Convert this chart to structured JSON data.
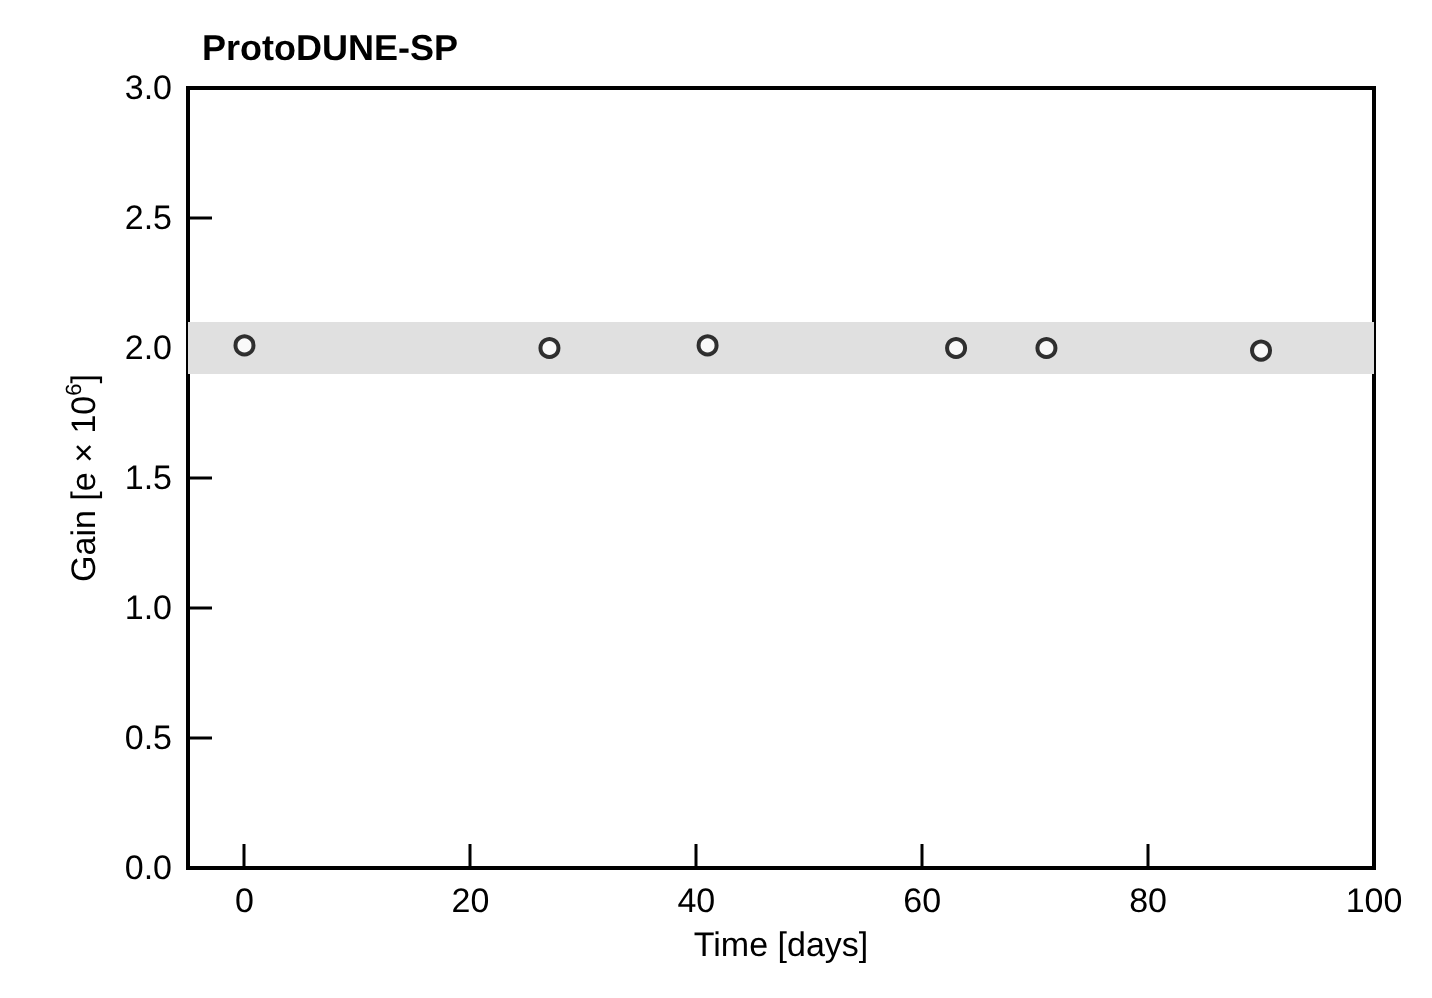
{
  "chart_data": {
    "type": "scatter",
    "title": "ProtoDUNE-SP",
    "xlabel": "Time [days]",
    "ylabel": "Gain [e × 10$^{6}$]",
    "x": [
      0,
      27,
      41,
      63,
      71,
      90
    ],
    "series": [
      {
        "color": "#000000",
        "values": [
          2.01,
          2.0,
          2.01,
          2.0,
          2.0,
          1.99
        ]
      }
    ],
    "marker": "circle",
    "xlim": [
      -5,
      100
    ],
    "xticks": [
      0,
      20,
      40,
      60,
      80,
      100
    ],
    "ylim": [
      0,
      3
    ],
    "yticks": [
      {
        "value": 0,
        "label": "0.0"
      },
      0.5,
      {
        "value": 1,
        "label": "1.0"
      },
      1.5,
      {
        "value": 2,
        "label": "2.0"
      },
      2.5,
      {
        "value": 3,
        "label": "3.0"
      }
    ],
    "bands": [
      {
        "axis": "y",
        "from": 1.9,
        "to": 2.1,
        "color": "#e0e0e0"
      }
    ],
    "grid": false
  }
}
